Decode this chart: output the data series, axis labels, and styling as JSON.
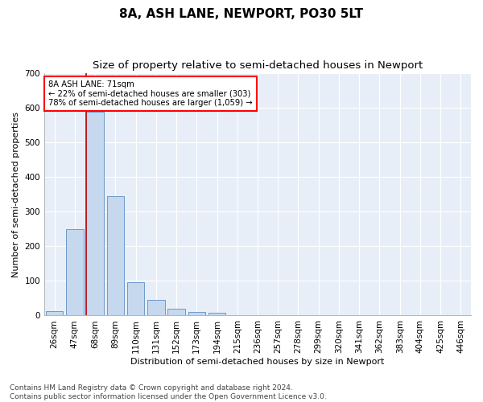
{
  "title": "8A, ASH LANE, NEWPORT, PO30 5LT",
  "subtitle": "Size of property relative to semi-detached houses in Newport",
  "xlabel": "Distribution of semi-detached houses by size in Newport",
  "ylabel": "Number of semi-detached properties",
  "categories": [
    "26sqm",
    "47sqm",
    "68sqm",
    "89sqm",
    "110sqm",
    "131sqm",
    "152sqm",
    "173sqm",
    "194sqm",
    "215sqm",
    "236sqm",
    "257sqm",
    "278sqm",
    "299sqm",
    "320sqm",
    "341sqm",
    "362sqm",
    "383sqm",
    "404sqm",
    "425sqm",
    "446sqm"
  ],
  "values": [
    13,
    248,
    588,
    345,
    97,
    46,
    20,
    10,
    7,
    1,
    0,
    0,
    0,
    0,
    0,
    0,
    0,
    0,
    0,
    0,
    0
  ],
  "bar_color": "#c5d8ed",
  "bar_edge_color": "#5b8ec4",
  "highlight_index": 2,
  "highlight_line_color": "#cc0000",
  "annotation_text_line1": "8A ASH LANE: 71sqm",
  "annotation_text_line2": "← 22% of semi-detached houses are smaller (303)",
  "annotation_text_line3": "78% of semi-detached houses are larger (1,059) →",
  "ylim": [
    0,
    700
  ],
  "yticks": [
    0,
    100,
    200,
    300,
    400,
    500,
    600,
    700
  ],
  "footer_line1": "Contains HM Land Registry data © Crown copyright and database right 2024.",
  "footer_line2": "Contains public sector information licensed under the Open Government Licence v3.0.",
  "fig_bg_color": "#ffffff",
  "plot_bg_color": "#e8eef8",
  "title_fontsize": 11,
  "subtitle_fontsize": 9.5,
  "axis_label_fontsize": 8,
  "tick_fontsize": 7.5,
  "footer_fontsize": 6.5
}
